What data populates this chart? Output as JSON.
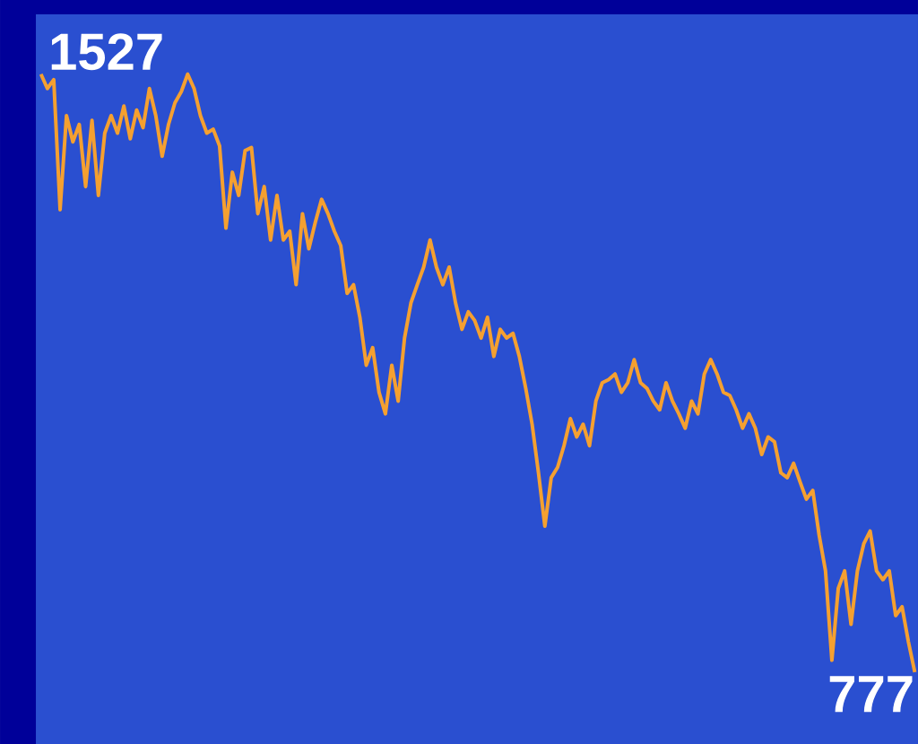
{
  "chart_data": {
    "type": "line",
    "color": "#f5a030",
    "categories": [
      null,
      null,
      null,
      null,
      null,
      null,
      null,
      null,
      null,
      null,
      null,
      null,
      null,
      null,
      null,
      null,
      null,
      null,
      null,
      null,
      null,
      null,
      null,
      null,
      null,
      null,
      null,
      null,
      null,
      null,
      null,
      null,
      null,
      null,
      null,
      null,
      null,
      null,
      null,
      null,
      null,
      null,
      null,
      null,
      null,
      null,
      null,
      null,
      null,
      null,
      null,
      null,
      null,
      null,
      null,
      null,
      null,
      null,
      null,
      null,
      null,
      null,
      null,
      null,
      null,
      null,
      null,
      null,
      null,
      null,
      null,
      null,
      null,
      null,
      null,
      null,
      null,
      null,
      null,
      null,
      null,
      null,
      null,
      null,
      null,
      null,
      null,
      null,
      null,
      null,
      null,
      null,
      null,
      null,
      null,
      null,
      null,
      null,
      null,
      null,
      null,
      null,
      null,
      null,
      null,
      null,
      null,
      null,
      null,
      null,
      null,
      null,
      null,
      null,
      null,
      null,
      null,
      null,
      null,
      null,
      null,
      null,
      null,
      null,
      null,
      null,
      null,
      null,
      null,
      null,
      null,
      null,
      null,
      null,
      null,
      null,
      null,
      null
    ],
    "values": [
      1527,
      1509,
      1520,
      1357,
      1475,
      1442,
      1464,
      1386,
      1469,
      1375,
      1453,
      1475,
      1453,
      1487,
      1446,
      1482,
      1460,
      1509,
      1475,
      1424,
      1464,
      1491,
      1505,
      1527,
      1509,
      1475,
      1453,
      1458,
      1437,
      1334,
      1404,
      1375,
      1431,
      1435,
      1352,
      1386,
      1319,
      1375,
      1319,
      1330,
      1263,
      1352,
      1308,
      1341,
      1370,
      1352,
      1330,
      1312,
      1252,
      1263,
      1222,
      1162,
      1184,
      1128,
      1101,
      1162,
      1117,
      1196,
      1240,
      1263,
      1285,
      1319,
      1285,
      1263,
      1285,
      1240,
      1207,
      1229,
      1218,
      1196,
      1222,
      1173,
      1207,
      1196,
      1202,
      1173,
      1133,
      1088,
      1027,
      960,
      1021,
      1034,
      1061,
      1095,
      1072,
      1088,
      1061,
      1117,
      1140,
      1144,
      1151,
      1128,
      1140,
      1169,
      1140,
      1133,
      1117,
      1106,
      1140,
      1117,
      1101,
      1083,
      1117,
      1101,
      1151,
      1169,
      1151,
      1128,
      1124,
      1106,
      1083,
      1101,
      1083,
      1050,
      1072,
      1066,
      1027,
      1021,
      1039,
      1016,
      994,
      1005,
      949,
      904,
      792,
      882,
      904,
      837,
      904,
      938,
      954,
      904,
      893,
      904,
      848,
      859,
      815,
      777
    ],
    "value_labels": [
      "1527",
      null,
      null,
      null,
      null,
      null,
      null,
      null,
      null,
      null,
      null,
      null,
      null,
      null,
      null,
      null,
      null,
      null,
      null,
      null,
      null,
      null,
      null,
      null,
      null,
      null,
      null,
      null,
      null,
      null,
      null,
      null,
      null,
      null,
      null,
      null,
      null,
      null,
      null,
      null,
      null,
      null,
      null,
      null,
      null,
      null,
      null,
      null,
      null,
      null,
      null,
      null,
      null,
      null,
      null,
      null,
      null,
      null,
      null,
      null,
      null,
      null,
      null,
      null,
      null,
      null,
      null,
      null,
      null,
      null,
      null,
      null,
      null,
      null,
      null,
      null,
      null,
      null,
      null,
      null,
      null,
      null,
      null,
      null,
      null,
      null,
      null,
      null,
      null,
      null,
      null,
      null,
      null,
      null,
      null,
      null,
      null,
      null,
      null,
      null,
      null,
      null,
      null,
      null,
      null,
      null,
      null,
      null,
      null,
      null,
      null,
      null,
      null,
      null,
      null,
      null,
      null,
      null,
      null,
      null,
      null,
      null,
      null,
      null,
      null,
      null,
      null,
      null,
      null,
      null,
      null,
      null,
      null,
      null,
      null,
      null,
      null,
      "777"
    ]
  }
}
